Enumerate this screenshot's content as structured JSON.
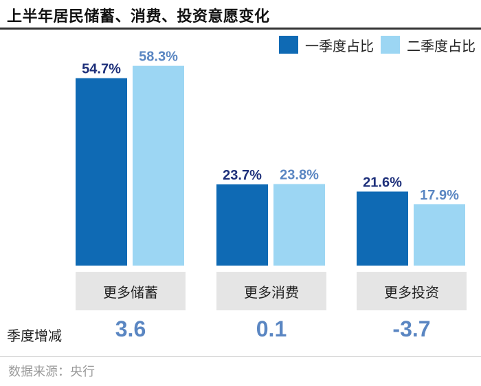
{
  "title": "上半年居民储蓄、消费、投资意愿变化",
  "colors": {
    "q1": "#0f6ab4",
    "q2": "#9cd6f3",
    "q1_text": "#1d2f7a",
    "q2_text": "#5a86c2"
  },
  "chart_data": {
    "type": "bar",
    "categories": [
      "更多储蓄",
      "更多消费",
      "更多投资"
    ],
    "series": [
      {
        "name": "一季度占比",
        "values": [
          54.7,
          23.7,
          21.6
        ],
        "labels": [
          "54.7%",
          "23.7%",
          "21.6%"
        ]
      },
      {
        "name": "二季度占比",
        "values": [
          58.3,
          23.8,
          17.9
        ],
        "labels": [
          "58.3%",
          "23.8%",
          "17.9%"
        ]
      }
    ],
    "ylim": [
      0,
      60
    ],
    "legend_position": "top-right",
    "grid": false
  },
  "change": {
    "label": "季度增减",
    "values": [
      "3.6",
      "0.1",
      "-3.7"
    ]
  },
  "source": "数据来源：央行"
}
